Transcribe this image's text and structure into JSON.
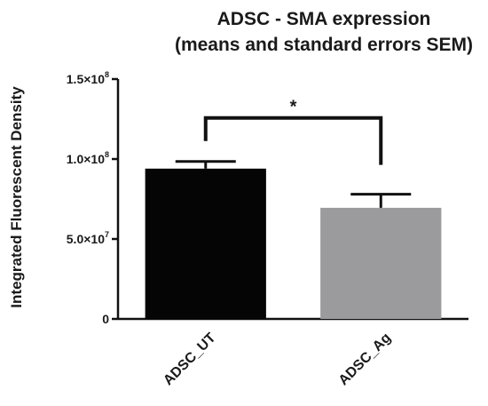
{
  "chart_data": {
    "type": "bar",
    "title_lines": [
      "ADSC - SMA expression",
      "(means and standard errors SEM)"
    ],
    "ylabel": "Integrated Fluorescent Density",
    "xlabel": "",
    "categories": [
      "ADSC_UT",
      "ADSC_Ag"
    ],
    "values": [
      94000000,
      69500000
    ],
    "errors": [
      4500000,
      8500000
    ],
    "bar_colors": [
      "#050505",
      "#9b9b9e"
    ],
    "ylim": [
      0,
      150000000
    ],
    "yticks": [
      {
        "value": 0,
        "mant": "0",
        "exp": ""
      },
      {
        "value": 50000000,
        "mant": "5.0×10",
        "exp": "7"
      },
      {
        "value": 100000000,
        "mant": "1.0×10",
        "exp": "8"
      },
      {
        "value": 150000000,
        "mant": "1.5×10",
        "exp": "8"
      }
    ],
    "significance": {
      "between": [
        0,
        1
      ],
      "label": "*"
    },
    "grid": false,
    "legend": "none"
  }
}
